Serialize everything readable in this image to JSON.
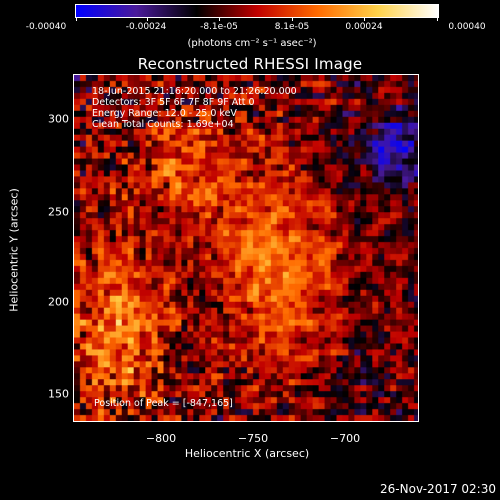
{
  "colorbar": {
    "tick_labels": [
      "-0.00040",
      "-0.00024",
      "-8.1e-05",
      "8.1e-05",
      "0.00024",
      "0.00040"
    ],
    "units": "(photons cm⁻² s⁻¹ asec⁻²)",
    "value_range": [
      -0.0004,
      0.0004
    ],
    "colors": [
      "#0000ff",
      "#4a1a9a",
      "#000000",
      "#c00000",
      "#ff6a00",
      "#ffd24a",
      "#ffffff"
    ]
  },
  "title": "Reconstructed RHESSI Image",
  "annotations": [
    "18-Jun-2015 21:16:20.000 to 21:26:20.000",
    "Detectors: 3F 5F 6F 7F 8F 9F  Att 0",
    "Energy Range: 12.0 - 25.0 keV",
    "Clean     Total Counts: 1.69e+04"
  ],
  "peak_label": "Position of Peak = [-847,165]",
  "axes": {
    "xlabel": "Heliocentric X (arcsec)",
    "ylabel": "Heliocentric Y (arcsec)",
    "xlim": [
      -840,
      -666
    ],
    "ylim": [
      132,
      326
    ],
    "xticks": [
      {
        "value": -800,
        "label": "−800"
      },
      {
        "value": -750,
        "label": "−750"
      },
      {
        "value": -700,
        "label": "−700"
      }
    ],
    "yticks": [
      {
        "value": 150,
        "label": "150"
      },
      {
        "value": 200,
        "label": "200"
      },
      {
        "value": 250,
        "label": "250"
      },
      {
        "value": 300,
        "label": "300"
      }
    ]
  },
  "timestamp": "26-Nov-2017 02:30"
}
